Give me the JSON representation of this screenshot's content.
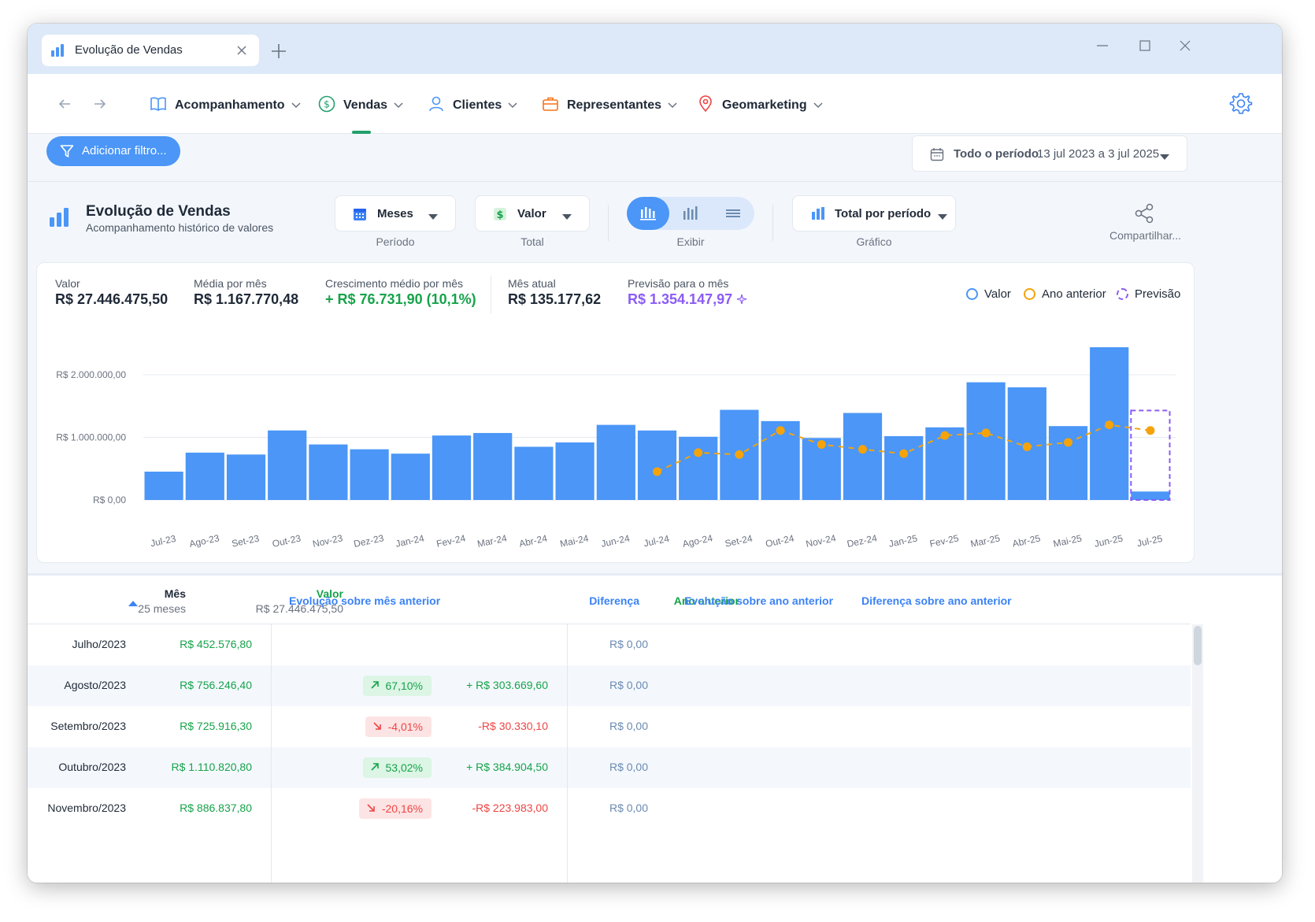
{
  "window": {
    "tab_title": "Evolução de Vendas"
  },
  "nav": {
    "items": [
      {
        "label": "Acompanhamento",
        "icon": "book-icon",
        "color": "#4b96f7"
      },
      {
        "label": "Vendas",
        "icon": "dollar-icon",
        "color": "#22a06b",
        "active": true
      },
      {
        "label": "Clientes",
        "icon": "user-icon",
        "color": "#4b96f7"
      },
      {
        "label": "Representantes",
        "icon": "briefcase-icon",
        "color": "#f97316"
      },
      {
        "label": "Geomarketing",
        "icon": "map-pin-icon",
        "color": "#ef4444"
      }
    ]
  },
  "filter": {
    "add_label": "Adicionar filtro..."
  },
  "period": {
    "label": "Todo o período",
    "range": "13 jul 2023 a 3 jul 2025"
  },
  "header": {
    "title": "Evolução de Vendas",
    "subtitle": "Acompanhamento histórico de valores"
  },
  "controls": {
    "periodo": {
      "value": "Meses",
      "caption": "Período"
    },
    "total": {
      "value": "Valor",
      "caption": "Total"
    },
    "exibir": {
      "caption": "Exibir",
      "active_index": 0
    },
    "grafico": {
      "value": "Total por período",
      "caption": "Gráfico"
    },
    "share_label": "Compartilhar..."
  },
  "stats": {
    "valor": {
      "label": "Valor",
      "value": "R$ 27.446.475,50"
    },
    "media": {
      "label": "Média por mês",
      "value": "R$ 1.167.770,48"
    },
    "crescimento": {
      "label": "Crescimento médio por mês",
      "value": "+ R$ 76.731,90 (10,1%)"
    },
    "mes_atual": {
      "label": "Mês atual",
      "value": "R$ 135.177,62"
    },
    "previsao": {
      "label": "Previsão para o mês",
      "value": "R$ 1.354.147,97"
    }
  },
  "legend": [
    {
      "label": "Valor",
      "color": "#4b96f7",
      "style": "solid"
    },
    {
      "label": "Ano anterior",
      "color": "#f5a30a",
      "style": "solid"
    },
    {
      "label": "Previsão",
      "color": "#8b5cf6",
      "style": "dashed"
    }
  ],
  "chart_data": {
    "type": "bar",
    "categories": [
      "Jul-23",
      "Ago-23",
      "Set-23",
      "Out-23",
      "Nov-23",
      "Dez-23",
      "Jan-24",
      "Fev-24",
      "Mar-24",
      "Abr-24",
      "Mai-24",
      "Jun-24",
      "Jul-24",
      "Ago-24",
      "Set-24",
      "Out-24",
      "Nov-24",
      "Dez-24",
      "Jan-25",
      "Fev-25",
      "Mar-25",
      "Abr-25",
      "Mai-25",
      "Jun-25",
      "Jul-25"
    ],
    "series": [
      {
        "name": "Valor",
        "color": "#4b96f7",
        "values": [
          452576.8,
          756246.4,
          725916.3,
          1110820.8,
          886837.8,
          810000,
          740000,
          1030000,
          1070000,
          850000,
          920000,
          1200000,
          1110000,
          1010000,
          1440000,
          1260000,
          990000,
          1390000,
          1020000,
          1160000,
          1880000,
          1800000,
          1180000,
          2440000,
          135177.62
        ]
      },
      {
        "name": "Ano anterior",
        "color": "#f5a30a",
        "values": [
          null,
          null,
          null,
          null,
          null,
          null,
          null,
          null,
          null,
          null,
          null,
          null,
          452576.8,
          756246.4,
          725916.3,
          1110820.8,
          886837.8,
          810000,
          740000,
          1030000,
          1070000,
          850000,
          920000,
          1200000,
          1110000
        ]
      },
      {
        "name": "Previsão",
        "color": "#8b5cf6",
        "values": [
          null,
          null,
          null,
          null,
          null,
          null,
          null,
          null,
          null,
          null,
          null,
          null,
          null,
          null,
          null,
          null,
          null,
          null,
          null,
          null,
          null,
          null,
          null,
          null,
          1354147.97
        ]
      }
    ],
    "ytick_labels": [
      "R$ 0,00",
      "R$ 1.000.000,00",
      "R$ 2.000.000,00"
    ],
    "yticks": [
      0,
      1000000,
      2000000
    ],
    "ylim": [
      0,
      2450000
    ],
    "grid": true
  },
  "table": {
    "headers": {
      "mes": "Mês",
      "mes_sub": "25 meses",
      "valor": "Valor",
      "valor_sub": "R$ 27.446.475,50",
      "evolucao": "Evolução sobre mês anterior",
      "diferenca": "Diferença",
      "ano_anterior": "Ano anterior",
      "evolucao_ano": "Evolução sobre ano anterior",
      "diferenca_ano": "Diferença sobre ano anterior"
    },
    "rows": [
      {
        "mes": "Julho/2023",
        "valor": "R$ 452.576,80",
        "evolucao": "",
        "trend": "",
        "diferenca": "",
        "ano_anterior": "R$ 0,00"
      },
      {
        "mes": "Agosto/2023",
        "valor": "R$ 756.246,40",
        "evolucao": "67,10%",
        "trend": "up",
        "diferenca": "+ R$ 303.669,60",
        "ano_anterior": "R$ 0,00"
      },
      {
        "mes": "Setembro/2023",
        "valor": "R$ 725.916,30",
        "evolucao": "-4,01%",
        "trend": "down",
        "diferenca": "-R$ 30.330,10",
        "ano_anterior": "R$ 0,00"
      },
      {
        "mes": "Outubro/2023",
        "valor": "R$ 1.110.820,80",
        "evolucao": "53,02%",
        "trend": "up",
        "diferenca": "+ R$ 384.904,50",
        "ano_anterior": "R$ 0,00"
      },
      {
        "mes": "Novembro/2023",
        "valor": "R$ 886.837,80",
        "evolucao": "-20,16%",
        "trend": "down",
        "diferenca": "-R$ 223.983,00",
        "ano_anterior": "R$ 0,00"
      }
    ]
  }
}
